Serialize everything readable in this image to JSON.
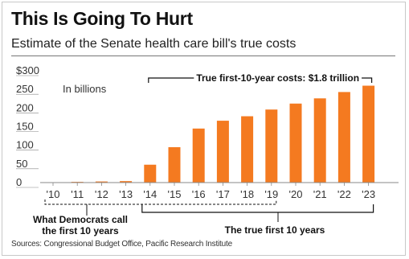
{
  "header": {
    "title": "This Is Going To Hurt",
    "subtitle": "Estimate of the Senate health care bill's true costs"
  },
  "source": "Sources: Congressional Budget Office, Pacific Research Institute",
  "colors": {
    "bar": "#f47a20",
    "bar_dark": "#e0620f",
    "axis": "#888888",
    "text": "#111111"
  },
  "chart_data": {
    "type": "bar",
    "title": "This Is Going To Hurt",
    "subtitle": "Estimate of the Senate health care bill's true costs",
    "unit_label": "In billions",
    "categories": [
      "'10",
      "'11",
      "'12",
      "'13",
      "'14",
      "'15",
      "'16",
      "'17",
      "'18",
      "'19",
      "'20",
      "'21",
      "'22",
      "'23"
    ],
    "values": [
      1,
      2,
      3,
      4,
      48,
      95,
      145,
      166,
      178,
      196,
      212,
      226,
      243,
      260
    ],
    "ylim": [
      0,
      300
    ],
    "yticks": [
      0,
      50,
      100,
      150,
      200,
      250,
      300
    ],
    "ytick_labels": [
      "0",
      "50",
      "100",
      "150",
      "200",
      "250",
      "$300"
    ],
    "grid": false,
    "annotations": {
      "top_bracket": "True first-10-year costs: $1.8 trillion",
      "left_bracket_line1": "What Democrats call",
      "left_bracket_line2": "the first 10 years",
      "right_bracket": "The true first 10 years"
    }
  }
}
